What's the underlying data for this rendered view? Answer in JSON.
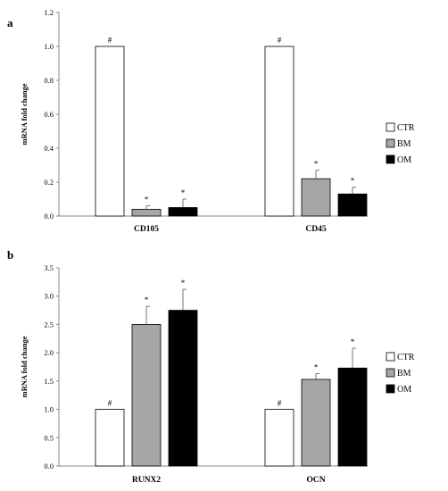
{
  "chart_data": [
    {
      "panel_label": "a",
      "type": "bar",
      "categories": [
        "CD105",
        "CD45"
      ],
      "series": [
        {
          "name": "CTR",
          "color": "#ffffff",
          "values": [
            1.0,
            1.0
          ],
          "errors": [
            0,
            0
          ],
          "marks": [
            "#",
            "#"
          ]
        },
        {
          "name": "BM",
          "color": "#a6a6a6",
          "values": [
            0.04,
            0.22
          ],
          "errors": [
            0.02,
            0.05
          ],
          "marks": [
            "*",
            "*"
          ]
        },
        {
          "name": "OM",
          "color": "#000000",
          "values": [
            0.05,
            0.13
          ],
          "errors": [
            0.05,
            0.04
          ],
          "marks": [
            "*",
            "*"
          ]
        }
      ],
      "ylabel": "mRNA fold change",
      "ylim": [
        0,
        1.2
      ],
      "yticks": [
        "0.0",
        "0.2",
        "0.4",
        "0.6",
        "0.8",
        "1.0",
        "1.2"
      ],
      "grid": false,
      "legend_position": "right"
    },
    {
      "panel_label": "b",
      "type": "bar",
      "categories": [
        "RUNX2",
        "OCN"
      ],
      "series": [
        {
          "name": "CTR",
          "color": "#ffffff",
          "values": [
            1.0,
            1.0
          ],
          "errors": [
            0,
            0
          ],
          "marks": [
            "#",
            "#"
          ]
        },
        {
          "name": "BM",
          "color": "#a6a6a6",
          "values": [
            2.5,
            1.53
          ],
          "errors": [
            0.32,
            0.1
          ],
          "marks": [
            "*",
            "*"
          ]
        },
        {
          "name": "OM",
          "color": "#000000",
          "values": [
            2.75,
            1.73
          ],
          "errors": [
            0.37,
            0.35
          ],
          "marks": [
            "*",
            "*"
          ]
        }
      ],
      "ylabel": "mRNA fold change",
      "ylim": [
        0,
        3.5
      ],
      "yticks": [
        "0.0",
        "0.5",
        "1.0",
        "1.5",
        "2.0",
        "2.5",
        "3.0",
        "3.5"
      ],
      "grid": false,
      "legend_position": "right"
    }
  ]
}
